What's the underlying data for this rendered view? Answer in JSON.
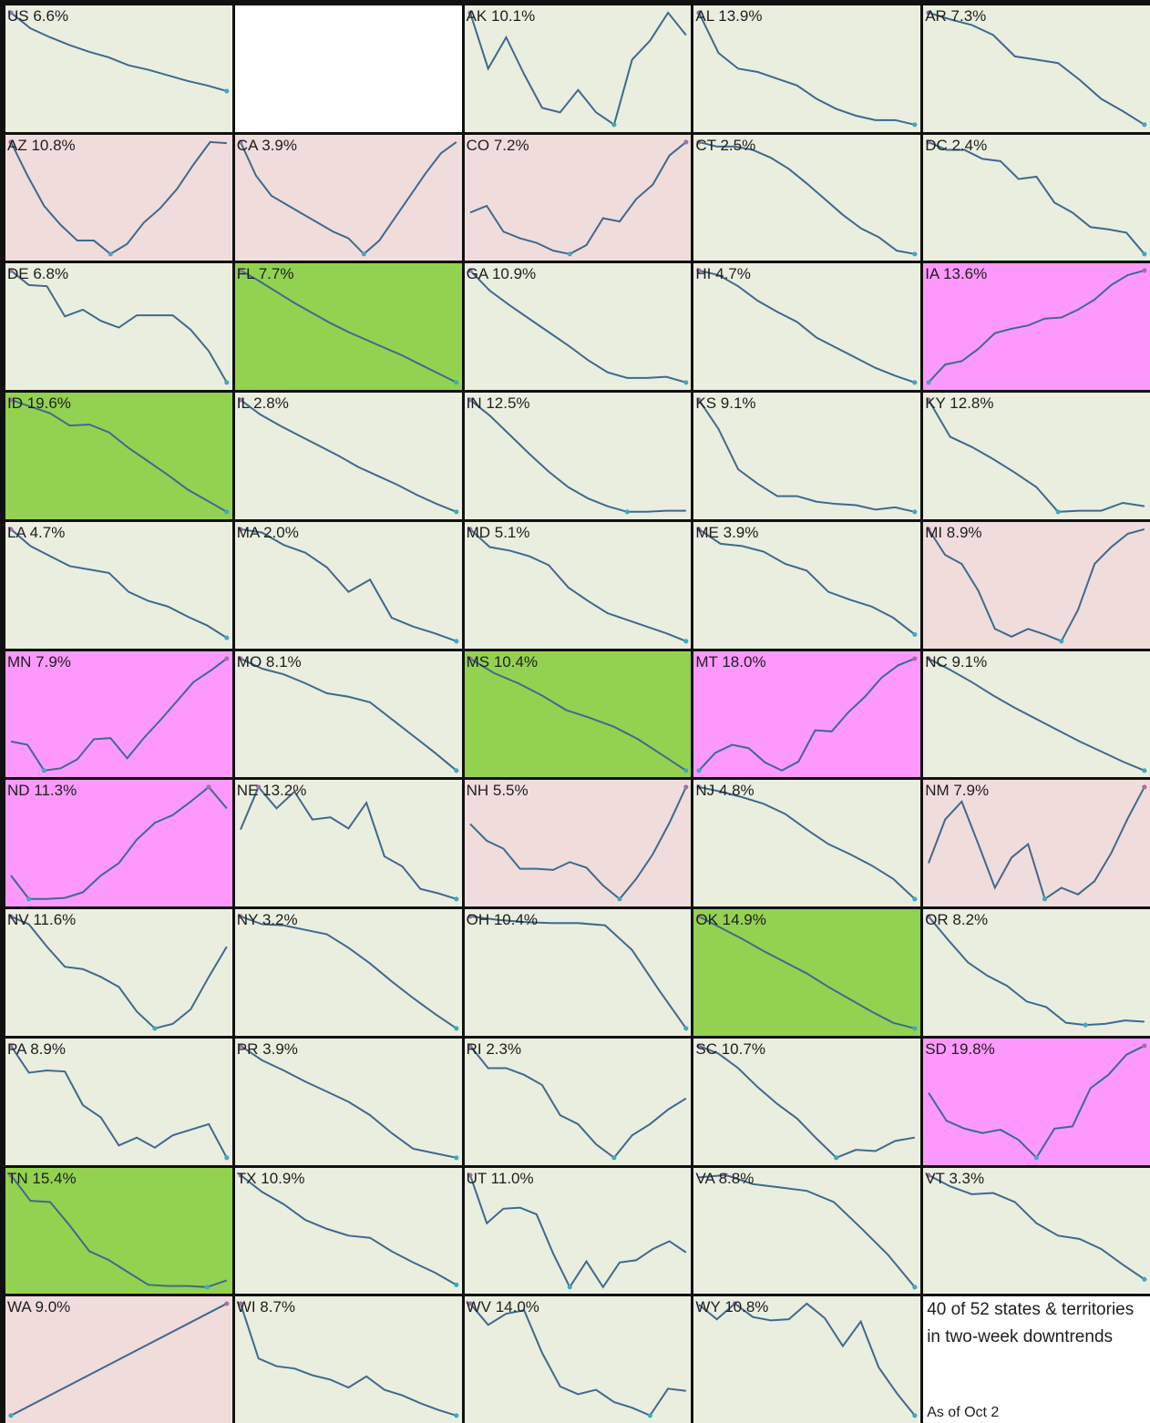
{
  "colors": {
    "background_down": "#eaeedf",
    "background_up": "#f1dcdc",
    "background_strong_down": "#93d250",
    "background_strong_up": "#fd99fd",
    "line": "#3d6a8f",
    "dot_high": "#a071a8",
    "dot_low": "#3fa9c0"
  },
  "note": {
    "line1": "40 of 52 states & territories",
    "line2": "in two-week downtrends",
    "date": "As of Oct 2"
  },
  "chart_data": {
    "type": "line",
    "layout": "small-multiples",
    "panels": [
      {
        "label": "US 6.6%",
        "trend": "down",
        "values": [
          100,
          86,
          78,
          71,
          65,
          60,
          53,
          49,
          44,
          39,
          35,
          30
        ]
      },
      {
        "label": "",
        "trend": "blank",
        "values": []
      },
      {
        "label": "AK 10.1%",
        "trend": "down",
        "values": [
          100,
          50,
          78,
          45,
          15,
          11,
          31,
          11,
          0,
          58,
          75,
          100,
          80
        ]
      },
      {
        "label": "AL 13.9%",
        "trend": "down",
        "values": [
          100,
          64,
          50,
          47,
          41,
          35,
          23,
          14,
          8,
          4,
          4,
          0
        ]
      },
      {
        "label": "AR 7.3%",
        "trend": "down",
        "values": [
          100,
          94,
          89,
          80,
          61,
          58,
          55,
          40,
          23,
          12,
          0
        ]
      },
      {
        "label": "AZ 10.8%",
        "trend": "up",
        "values": [
          100,
          70,
          43,
          26,
          12,
          12,
          0,
          9,
          28,
          41,
          58,
          80,
          100,
          99
        ]
      },
      {
        "label": "CA 3.9%",
        "trend": "up",
        "values": [
          100,
          70,
          52,
          44,
          36,
          28,
          20,
          14,
          0,
          12,
          32,
          52,
          72,
          90,
          100
        ]
      },
      {
        "label": "CO 7.2%",
        "trend": "up",
        "values": [
          37,
          43,
          20,
          14,
          10,
          3,
          0,
          8,
          32,
          29,
          49,
          62,
          88,
          100
        ]
      },
      {
        "label": "CT 2.5%",
        "trend": "down",
        "values": [
          100,
          96,
          96,
          93,
          86,
          76,
          63,
          49,
          35,
          23,
          15,
          3,
          0
        ]
      },
      {
        "label": "DC 2.4%",
        "trend": "down",
        "values": [
          100,
          93,
          93,
          85,
          83,
          67,
          69,
          46,
          37,
          24,
          22,
          19,
          0
        ]
      },
      {
        "label": "DE 6.8%",
        "trend": "down",
        "values": [
          100,
          87,
          86,
          59,
          65,
          55,
          49,
          60,
          60,
          60,
          47,
          28,
          0
        ]
      },
      {
        "label": "FL 7.7%",
        "trend": "strong-down",
        "values": [
          100,
          91,
          81,
          71,
          62,
          53,
          45,
          38,
          31,
          24,
          16,
          8,
          0
        ]
      },
      {
        "label": "GA 10.9%",
        "trend": "down",
        "values": [
          100,
          82,
          69,
          57,
          45,
          33,
          20,
          9,
          4,
          4,
          5,
          0
        ]
      },
      {
        "label": "HI 4.7%",
        "trend": "down",
        "values": [
          100,
          96,
          86,
          73,
          63,
          54,
          40,
          31,
          22,
          13,
          6,
          0
        ]
      },
      {
        "label": "IA 13.6%",
        "trend": "strong-up",
        "values": [
          0,
          16,
          19,
          30,
          44,
          48,
          51,
          57,
          58,
          65,
          74,
          87,
          96,
          100
        ]
      },
      {
        "label": "ID 19.6%",
        "trend": "strong-down",
        "values": [
          100,
          94,
          88,
          77,
          78,
          71,
          57,
          45,
          33,
          20,
          10,
          0
        ]
      },
      {
        "label": "IL 2.8%",
        "trend": "down",
        "values": [
          100,
          87,
          77,
          68,
          59,
          50,
          40,
          32,
          24,
          15,
          7,
          0
        ]
      },
      {
        "label": "IN 12.5%",
        "trend": "down",
        "values": [
          100,
          86,
          69,
          52,
          36,
          22,
          12,
          5,
          0,
          0,
          1,
          1
        ]
      },
      {
        "label": "KS 9.1%",
        "trend": "down",
        "values": [
          100,
          74,
          38,
          25,
          14,
          14,
          9,
          7,
          6,
          2,
          4,
          0
        ]
      },
      {
        "label": "KY 12.8%",
        "trend": "down",
        "values": [
          100,
          67,
          58,
          47,
          35,
          22,
          0,
          1,
          1,
          8,
          5
        ]
      },
      {
        "label": "LA 4.7%",
        "trend": "down",
        "values": [
          100,
          85,
          76,
          67,
          64,
          61,
          44,
          36,
          31,
          22,
          14,
          3
        ]
      },
      {
        "label": "MA 2.0%",
        "trend": "down",
        "values": [
          100,
          97,
          86,
          79,
          66,
          44,
          55,
          21,
          13,
          7,
          0
        ]
      },
      {
        "label": "MD 5.1%",
        "trend": "down",
        "values": [
          100,
          84,
          81,
          76,
          68,
          48,
          36,
          25,
          19,
          13,
          7,
          0
        ]
      },
      {
        "label": "ME 3.9%",
        "trend": "down",
        "values": [
          100,
          87,
          85,
          80,
          69,
          63,
          44,
          37,
          31,
          21,
          6
        ]
      },
      {
        "label": "MI 8.9%",
        "trend": "up",
        "values": [
          100,
          77,
          69,
          45,
          11,
          4,
          11,
          6,
          0,
          28,
          69,
          84,
          96,
          100
        ]
      },
      {
        "label": "MN 7.9%",
        "trend": "strong-up",
        "values": [
          26,
          23,
          0,
          2,
          10,
          28,
          29,
          11,
          29,
          45,
          62,
          79,
          89,
          100
        ]
      },
      {
        "label": "MO 8.1%",
        "trend": "down",
        "values": [
          100,
          91,
          86,
          78,
          69,
          66,
          61,
          46,
          31,
          16,
          0
        ]
      },
      {
        "label": "MS 10.4%",
        "trend": "strong-down",
        "values": [
          100,
          87,
          78,
          67,
          54,
          47,
          39,
          28,
          14,
          0
        ]
      },
      {
        "label": "MT 18.0%",
        "trend": "strong-up",
        "values": [
          0,
          16,
          23,
          20,
          7,
          0,
          8,
          36,
          35,
          52,
          66,
          83,
          94,
          100
        ]
      },
      {
        "label": "NC 9.1%",
        "trend": "down",
        "values": [
          100,
          90,
          79,
          67,
          56,
          46,
          36,
          26,
          17,
          8,
          0
        ]
      },
      {
        "label": "ND 11.3%",
        "trend": "strong-up",
        "values": [
          21,
          0,
          0,
          1,
          6,
          21,
          32,
          53,
          68,
          75,
          87,
          100,
          81
        ]
      },
      {
        "label": "NE 13.2%",
        "trend": "down",
        "values": [
          62,
          100,
          81,
          96,
          71,
          73,
          63,
          86,
          38,
          29,
          9,
          5,
          0
        ]
      },
      {
        "label": "NH 5.5%",
        "trend": "up",
        "values": [
          67,
          52,
          45,
          27,
          27,
          26,
          33,
          28,
          12,
          0,
          18,
          40,
          68,
          100
        ]
      },
      {
        "label": "NJ 4.8%",
        "trend": "down",
        "values": [
          100,
          96,
          91,
          85,
          76,
          62,
          49,
          40,
          30,
          18,
          0
        ]
      },
      {
        "label": "NM 7.9%",
        "trend": "up",
        "values": [
          32,
          71,
          87,
          49,
          10,
          37,
          49,
          0,
          10,
          4,
          16,
          41,
          72,
          100
        ]
      },
      {
        "label": "NV 11.6%",
        "trend": "down",
        "values": [
          100,
          93,
          73,
          55,
          53,
          46,
          37,
          15,
          0,
          4,
          17,
          46,
          73
        ]
      },
      {
        "label": "NY 3.2%",
        "trend": "down",
        "values": [
          100,
          93,
          92,
          88,
          84,
          72,
          58,
          42,
          27,
          13,
          0
        ]
      },
      {
        "label": "OH 10.4%",
        "trend": "down",
        "values": [
          100,
          97,
          95,
          94,
          94,
          92,
          70,
          34,
          0
        ]
      },
      {
        "label": "OK 14.9%",
        "trend": "strong-down",
        "values": [
          100,
          90,
          80,
          69,
          59,
          49,
          37,
          26,
          15,
          5,
          0
        ]
      },
      {
        "label": "OR 8.2%",
        "trend": "down",
        "values": [
          100,
          79,
          59,
          47,
          38,
          24,
          19,
          5,
          3,
          4,
          7,
          6
        ]
      },
      {
        "label": "PA 8.9%",
        "trend": "down",
        "values": [
          100,
          76,
          78,
          77,
          47,
          36,
          11,
          18,
          9,
          20,
          25,
          30,
          0
        ]
      },
      {
        "label": "PR 3.9%",
        "trend": "down",
        "values": [
          100,
          87,
          78,
          68,
          59,
          50,
          38,
          22,
          8,
          4,
          0
        ]
      },
      {
        "label": "RI 2.3%",
        "trend": "down",
        "values": [
          100,
          80,
          80,
          74,
          65,
          38,
          30,
          12,
          0,
          20,
          30,
          43,
          53
        ]
      },
      {
        "label": "SC 10.7%",
        "trend": "down",
        "values": [
          100,
          93,
          80,
          63,
          48,
          35,
          17,
          0,
          7,
          6,
          15,
          18
        ]
      },
      {
        "label": "SD 19.8%",
        "trend": "strong-up",
        "values": [
          58,
          33,
          26,
          22,
          25,
          16,
          0,
          26,
          28,
          62,
          74,
          92,
          100
        ]
      },
      {
        "label": "TN 15.4%",
        "trend": "strong-down",
        "values": [
          100,
          77,
          76,
          55,
          32,
          24,
          13,
          2,
          1,
          1,
          0,
          6
        ]
      },
      {
        "label": "TX 10.9%",
        "trend": "down",
        "values": [
          100,
          85,
          74,
          60,
          52,
          46,
          44,
          32,
          22,
          13,
          2
        ]
      },
      {
        "label": "UT 11.0%",
        "trend": "down",
        "values": [
          100,
          57,
          70,
          71,
          65,
          30,
          0,
          23,
          0,
          22,
          24,
          34,
          41,
          31
        ]
      },
      {
        "label": "VA 8.8%",
        "trend": "down",
        "values": [
          98,
          100,
          92,
          89,
          86,
          76,
          53,
          29,
          0
        ]
      },
      {
        "label": "VT 3.3%",
        "trend": "down",
        "values": [
          100,
          90,
          83,
          84,
          76,
          57,
          46,
          43,
          34,
          20,
          7
        ]
      },
      {
        "label": "WA 9.0%",
        "trend": "up",
        "values": [
          0,
          100
        ]
      },
      {
        "label": "WI 8.7%",
        "trend": "down",
        "values": [
          100,
          51,
          44,
          42,
          36,
          32,
          25,
          35,
          23,
          18,
          11,
          5,
          0
        ]
      },
      {
        "label": "WV 14.0%",
        "trend": "down",
        "values": [
          100,
          81,
          91,
          94,
          56,
          26,
          19,
          23,
          12,
          7,
          0,
          24,
          22
        ]
      },
      {
        "label": "WY 10.8%",
        "trend": "down",
        "values": [
          99,
          86,
          100,
          88,
          85,
          86,
          100,
          87,
          62,
          84,
          43,
          20,
          0
        ]
      }
    ]
  }
}
